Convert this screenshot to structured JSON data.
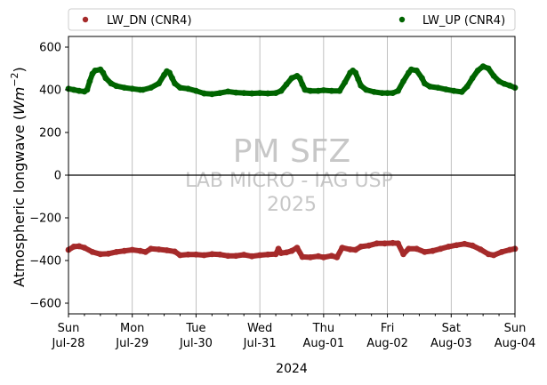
{
  "chart_data": {
    "type": "scatter",
    "xlabel": "2024",
    "ylabel": "Atmospheric longwave (W m^-2)",
    "ylabel_parts": {
      "base": "Atmospheric longwave (",
      "unit": "Wm",
      "exp": "−2",
      "close": ")"
    },
    "ylim": [
      -650,
      650
    ],
    "yticks": [
      -600,
      -400,
      -200,
      0,
      200,
      400,
      600
    ],
    "xlim": [
      0,
      168
    ],
    "x_units": "hours since Sun Jul-28 00:00",
    "xticks": [
      {
        "x": 0,
        "day": "Sun",
        "date": "Jul-28"
      },
      {
        "x": 24,
        "day": "Mon",
        "date": "Jul-29"
      },
      {
        "x": 48,
        "day": "Tue",
        "date": "Jul-30"
      },
      {
        "x": 72,
        "day": "Wed",
        "date": "Jul-31"
      },
      {
        "x": 96,
        "day": "Thu",
        "date": "Aug-01"
      },
      {
        "x": 120,
        "day": "Fri",
        "date": "Aug-02"
      },
      {
        "x": 144,
        "day": "Sat",
        "date": "Aug-03"
      },
      {
        "x": 168,
        "day": "Sun",
        "date": "Aug-04"
      }
    ],
    "grid": "vertical",
    "zero_line": true,
    "legend": "top",
    "watermark": [
      "PM SFZ",
      "LAB MICRO - IAG USP",
      "2025"
    ],
    "series": [
      {
        "name": "LW_DN (CNR4)",
        "color": "#a52a2a",
        "points": [
          [
            0,
            -350
          ],
          [
            2,
            -335
          ],
          [
            4,
            -333
          ],
          [
            6,
            -340
          ],
          [
            9,
            -360
          ],
          [
            12,
            -370
          ],
          [
            15,
            -368
          ],
          [
            18,
            -360
          ],
          [
            21,
            -355
          ],
          [
            24,
            -350
          ],
          [
            27,
            -355
          ],
          [
            29,
            -360
          ],
          [
            31,
            -345
          ],
          [
            34,
            -348
          ],
          [
            37,
            -352
          ],
          [
            40,
            -358
          ],
          [
            42,
            -375
          ],
          [
            45,
            -372
          ],
          [
            48,
            -372
          ],
          [
            51,
            -375
          ],
          [
            54,
            -370
          ],
          [
            57,
            -372
          ],
          [
            60,
            -378
          ],
          [
            63,
            -378
          ],
          [
            66,
            -373
          ],
          [
            69,
            -380
          ],
          [
            72,
            -375
          ],
          [
            75,
            -372
          ],
          [
            78,
            -370
          ],
          [
            79,
            -345
          ],
          [
            80,
            -365
          ],
          [
            82,
            -362
          ],
          [
            84,
            -355
          ],
          [
            86,
            -340
          ],
          [
            88,
            -383
          ],
          [
            91,
            -385
          ],
          [
            94,
            -380
          ],
          [
            96,
            -385
          ],
          [
            99,
            -378
          ],
          [
            101,
            -385
          ],
          [
            103,
            -340
          ],
          [
            106,
            -348
          ],
          [
            108,
            -350
          ],
          [
            110,
            -335
          ],
          [
            113,
            -330
          ],
          [
            116,
            -320
          ],
          [
            119,
            -320
          ],
          [
            122,
            -318
          ],
          [
            124,
            -320
          ],
          [
            126,
            -370
          ],
          [
            128,
            -345
          ],
          [
            131,
            -345
          ],
          [
            134,
            -360
          ],
          [
            137,
            -355
          ],
          [
            140,
            -345
          ],
          [
            143,
            -335
          ],
          [
            146,
            -328
          ],
          [
            149,
            -322
          ],
          [
            152,
            -330
          ],
          [
            155,
            -348
          ],
          [
            158,
            -370
          ],
          [
            160,
            -375
          ],
          [
            163,
            -360
          ],
          [
            166,
            -350
          ],
          [
            168,
            -345
          ]
        ]
      },
      {
        "name": "LW_UP (CNR4)",
        "color": "#006400",
        "points": [
          [
            0,
            405
          ],
          [
            2,
            400
          ],
          [
            4,
            395
          ],
          [
            6,
            392
          ],
          [
            7,
            400
          ],
          [
            8,
            440
          ],
          [
            9,
            475
          ],
          [
            10,
            490
          ],
          [
            12,
            495
          ],
          [
            13,
            480
          ],
          [
            14,
            455
          ],
          [
            16,
            430
          ],
          [
            18,
            418
          ],
          [
            21,
            410
          ],
          [
            24,
            405
          ],
          [
            27,
            400
          ],
          [
            28,
            400
          ],
          [
            31,
            410
          ],
          [
            34,
            430
          ],
          [
            36,
            470
          ],
          [
            37,
            487
          ],
          [
            38,
            480
          ],
          [
            39,
            455
          ],
          [
            40,
            430
          ],
          [
            42,
            410
          ],
          [
            45,
            405
          ],
          [
            48,
            395
          ],
          [
            51,
            383
          ],
          [
            54,
            380
          ],
          [
            57,
            385
          ],
          [
            60,
            392
          ],
          [
            63,
            387
          ],
          [
            66,
            385
          ],
          [
            69,
            383
          ],
          [
            72,
            385
          ],
          [
            75,
            383
          ],
          [
            78,
            385
          ],
          [
            80,
            395
          ],
          [
            82,
            425
          ],
          [
            84,
            455
          ],
          [
            86,
            465
          ],
          [
            87,
            455
          ],
          [
            88,
            425
          ],
          [
            89,
            400
          ],
          [
            91,
            395
          ],
          [
            94,
            395
          ],
          [
            96,
            398
          ],
          [
            99,
            395
          ],
          [
            102,
            395
          ],
          [
            104,
            435
          ],
          [
            106,
            480
          ],
          [
            107,
            490
          ],
          [
            108,
            480
          ],
          [
            109,
            450
          ],
          [
            110,
            420
          ],
          [
            112,
            400
          ],
          [
            115,
            390
          ],
          [
            118,
            385
          ],
          [
            120,
            385
          ],
          [
            122,
            385
          ],
          [
            124,
            395
          ],
          [
            126,
            440
          ],
          [
            128,
            480
          ],
          [
            129,
            495
          ],
          [
            131,
            490
          ],
          [
            133,
            455
          ],
          [
            134,
            430
          ],
          [
            136,
            415
          ],
          [
            139,
            410
          ],
          [
            142,
            402
          ],
          [
            145,
            395
          ],
          [
            148,
            390
          ],
          [
            150,
            415
          ],
          [
            152,
            455
          ],
          [
            154,
            490
          ],
          [
            156,
            510
          ],
          [
            158,
            500
          ],
          [
            160,
            465
          ],
          [
            162,
            440
          ],
          [
            164,
            428
          ],
          [
            166,
            420
          ],
          [
            168,
            410
          ]
        ]
      }
    ]
  }
}
